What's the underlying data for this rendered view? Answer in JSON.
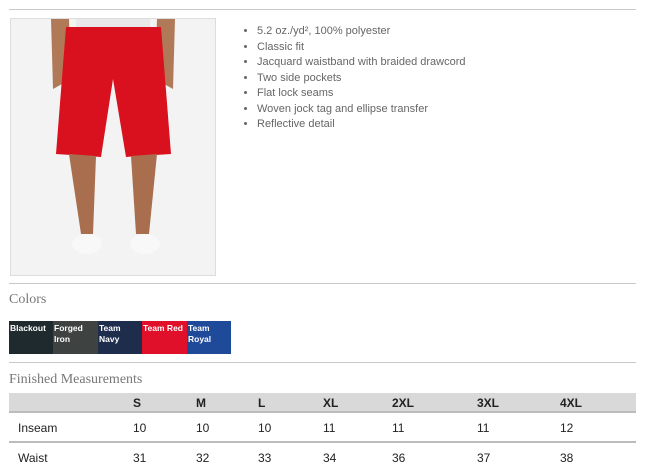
{
  "product": {
    "image_alt": "Red athletic shorts",
    "features": [
      "5.2 oz./yd², 100% polyester",
      "Classic fit",
      "Jacquard waistband with braided drawcord",
      "Two side pockets",
      "Flat lock seams",
      "Woven jock tag and ellipse transfer",
      "Reflective detail"
    ]
  },
  "colors": {
    "heading": "Colors",
    "swatches": [
      {
        "name": "Blackout",
        "hex": "#1f2a2e"
      },
      {
        "name": "Forged Iron",
        "hex": "#3e4342"
      },
      {
        "name": "Team Navy",
        "hex": "#1f2d4d"
      },
      {
        "name": "Team Red",
        "hex": "#e0102a"
      },
      {
        "name": "Team Royal",
        "hex": "#1f4a9a"
      }
    ]
  },
  "measurements": {
    "heading": "Finished Measurements",
    "columns": [
      "S",
      "M",
      "L",
      "XL",
      "2XL",
      "3XL",
      "4XL"
    ],
    "rows": [
      {
        "label": "Inseam",
        "values": [
          "10",
          "10",
          "10",
          "11",
          "11",
          "11",
          "12"
        ]
      },
      {
        "label": "Waist",
        "values": [
          "31",
          "32",
          "33",
          "34",
          "36",
          "37",
          "38"
        ]
      }
    ]
  }
}
